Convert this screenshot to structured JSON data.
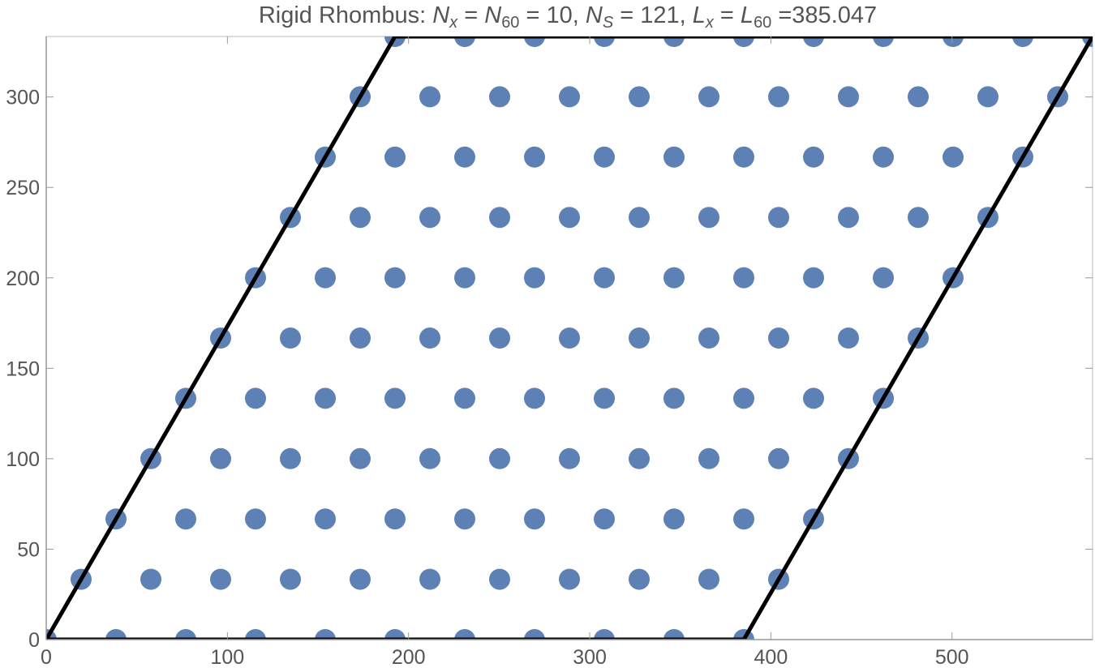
{
  "chart_data": {
    "type": "scatter",
    "title": [
      "Rigid Rhombus: ",
      "N",
      "x",
      " = ",
      "N",
      "60",
      " = 10, ",
      "N",
      "S",
      " = 121, ",
      "L",
      "x",
      " = ",
      "L",
      "60",
      " =385.047"
    ],
    "xlim": [
      0,
      577.57
    ],
    "ylim": [
      0,
      333.46
    ],
    "xticks": [
      0,
      100,
      200,
      300,
      400,
      500
    ],
    "yticks": [
      0,
      50,
      100,
      150,
      200,
      250,
      300
    ],
    "series": [
      {
        "color": "#5e81b5",
        "x": [
          0,
          38.5,
          77.01,
          115.51,
          154.02,
          192.52,
          231.03,
          269.53,
          308.04,
          346.54,
          385.05,
          19.25,
          57.76,
          96.26,
          134.77,
          173.27,
          211.78,
          250.28,
          288.79,
          327.29,
          365.79,
          404.3,
          38.5,
          77.01,
          115.51,
          154.02,
          192.52,
          231.03,
          269.53,
          308.04,
          346.54,
          385.05,
          423.55,
          57.76,
          96.26,
          134.77,
          173.27,
          211.78,
          250.28,
          288.79,
          327.29,
          365.79,
          404.3,
          442.8,
          77.01,
          115.51,
          154.02,
          192.52,
          231.03,
          269.53,
          308.04,
          346.54,
          385.05,
          423.55,
          462.06,
          96.26,
          134.77,
          173.27,
          211.78,
          250.28,
          288.79,
          327.29,
          365.79,
          404.3,
          442.8,
          481.31,
          115.51,
          154.02,
          192.52,
          231.03,
          269.53,
          308.04,
          346.54,
          385.05,
          423.55,
          462.06,
          500.56,
          134.77,
          173.27,
          211.78,
          250.28,
          288.79,
          327.29,
          365.79,
          404.3,
          442.8,
          481.31,
          519.81,
          154.02,
          192.52,
          231.03,
          269.53,
          308.04,
          346.54,
          385.05,
          423.55,
          462.06,
          500.56,
          539.07,
          173.27,
          211.78,
          250.28,
          288.79,
          327.29,
          365.79,
          404.3,
          442.8,
          481.31,
          519.81,
          558.32,
          192.52,
          231.03,
          269.53,
          308.04,
          346.54,
          385.05,
          423.55,
          462.06,
          500.56,
          539.07,
          577.57
        ],
        "y": [
          0,
          0,
          0,
          0,
          0,
          0,
          0,
          0,
          0,
          0,
          0,
          33.35,
          33.35,
          33.35,
          33.35,
          33.35,
          33.35,
          33.35,
          33.35,
          33.35,
          33.35,
          33.35,
          66.69,
          66.69,
          66.69,
          66.69,
          66.69,
          66.69,
          66.69,
          66.69,
          66.69,
          66.69,
          66.69,
          100.04,
          100.04,
          100.04,
          100.04,
          100.04,
          100.04,
          100.04,
          100.04,
          100.04,
          100.04,
          100.04,
          133.38,
          133.38,
          133.38,
          133.38,
          133.38,
          133.38,
          133.38,
          133.38,
          133.38,
          133.38,
          133.38,
          166.73,
          166.73,
          166.73,
          166.73,
          166.73,
          166.73,
          166.73,
          166.73,
          166.73,
          166.73,
          166.73,
          200.08,
          200.08,
          200.08,
          200.08,
          200.08,
          200.08,
          200.08,
          200.08,
          200.08,
          200.08,
          200.08,
          233.42,
          233.42,
          233.42,
          233.42,
          233.42,
          233.42,
          233.42,
          233.42,
          233.42,
          233.42,
          233.42,
          266.77,
          266.77,
          266.77,
          266.77,
          266.77,
          266.77,
          266.77,
          266.77,
          266.77,
          266.77,
          266.77,
          300.12,
          300.12,
          300.12,
          300.12,
          300.12,
          300.12,
          300.12,
          300.12,
          300.12,
          300.12,
          300.12,
          333.46,
          333.46,
          333.46,
          333.46,
          333.46,
          333.46,
          333.46,
          333.46,
          333.46,
          333.46,
          333.46
        ]
      }
    ],
    "outline": {
      "color": "#000000",
      "x": [
        0,
        385.05,
        577.57,
        192.52,
        0
      ],
      "y": [
        0,
        0,
        333.46,
        333.46,
        0
      ]
    }
  }
}
